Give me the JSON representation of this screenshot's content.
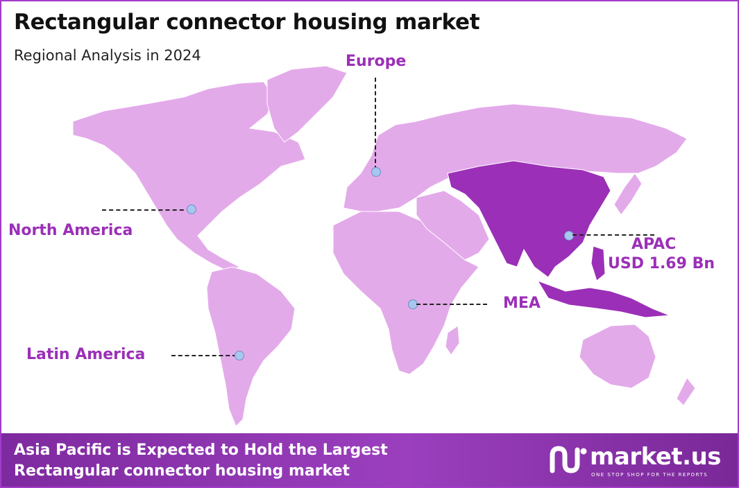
{
  "header": {
    "title": "Rectangular connector housing market",
    "subtitle": "Regional Analysis in 2024"
  },
  "regions": {
    "europe": "Europe",
    "north_america": "North America",
    "apac": "APAC",
    "apac_value": "USD 1.69 Bn",
    "mea": "MEA",
    "latin_america": "Latin America"
  },
  "footer": {
    "line1": "Asia Pacific is Expected to Hold the Largest",
    "line2": "Rectangular connector housing market"
  },
  "logo": {
    "name": "market.us",
    "tagline": "ONE STOP SHOP FOR THE REPORTS"
  },
  "colors": {
    "land": "#e3aaea",
    "highlight": "#9b2fb7",
    "accent": "#a23bc9"
  }
}
